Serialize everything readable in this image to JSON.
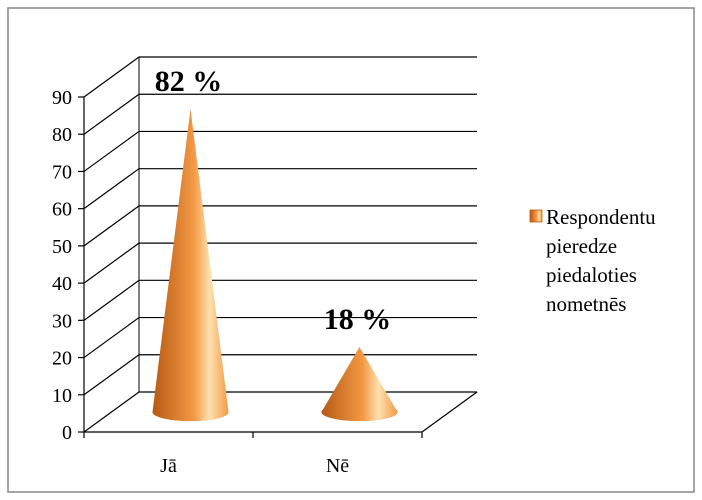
{
  "chart_data": {
    "type": "bar",
    "style": "3d-cone",
    "categories": [
      "Jā",
      "Nē"
    ],
    "series": [
      {
        "name": "Respondentu pieredze piedaloties nometnēs",
        "values": [
          82,
          18
        ]
      }
    ],
    "data_labels": [
      "82 %",
      "18 %"
    ],
    "ylim": [
      0,
      90
    ],
    "yticks": [
      0,
      10,
      20,
      30,
      40,
      50,
      60,
      70,
      80,
      90
    ],
    "ytick_labels": [
      "0",
      "10",
      "20",
      "30",
      "40",
      "50",
      "60",
      "70",
      "80",
      "90"
    ],
    "grid": true,
    "legend_position": "right",
    "legend_lines": [
      "Respondentu",
      "pieredze",
      "piedaloties",
      "nometnēs"
    ],
    "colors": {
      "cone_dark": "#b65a14",
      "cone_mid": "#f39a45",
      "cone_light": "#fde0b0",
      "frame": "#888888",
      "grid": "#000000"
    }
  }
}
